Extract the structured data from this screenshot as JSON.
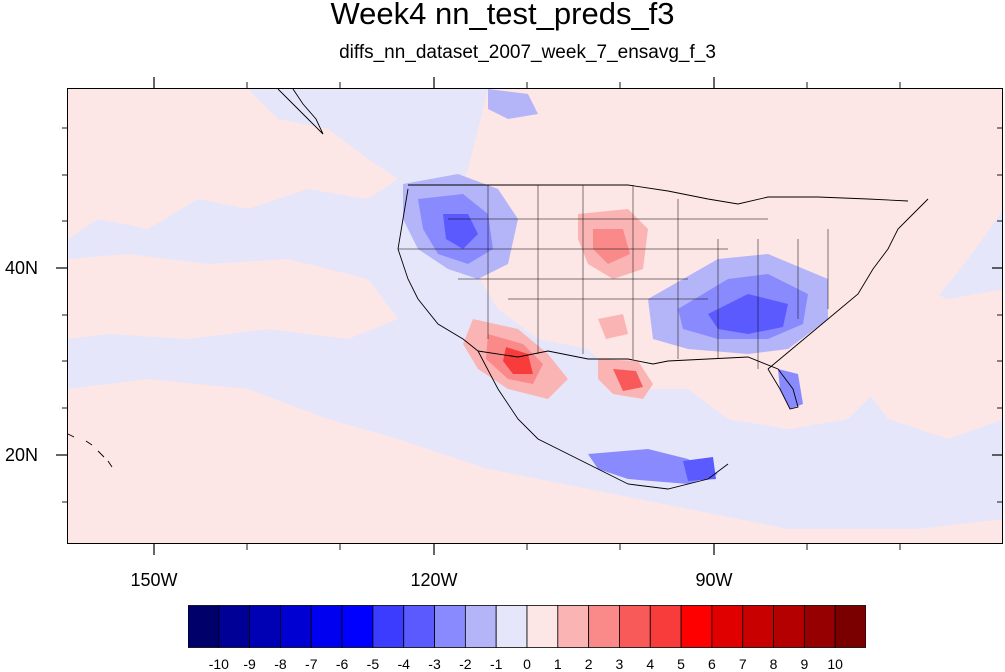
{
  "title": "Week4 nn_test_preds_f3",
  "subtitle": "diffs_nn_dataset_2007_week_7_ensavg_f_3",
  "lat_labels": [
    "40N",
    "20N"
  ],
  "lon_labels": [
    "150W",
    "120W",
    "90W"
  ],
  "colorbar": {
    "labels": [
      "-10",
      "-9",
      "-8",
      "-7",
      "-6",
      "-5",
      "-4",
      "-3",
      "-2",
      "-1",
      "0",
      "1",
      "2",
      "3",
      "4",
      "5",
      "6",
      "7",
      "8",
      "9",
      "10"
    ],
    "colors": [
      "#00006b",
      "#000096",
      "#0000b4",
      "#0000d2",
      "#0000f0",
      "#0000ff",
      "#3c3cff",
      "#5a5aff",
      "#8a8aff",
      "#b4b4f8",
      "#e6e6fb",
      "#fde6e6",
      "#fbb4b4",
      "#fa8a8a",
      "#f85a5a",
      "#f83c3c",
      "#ff0000",
      "#e00000",
      "#c80000",
      "#b40000",
      "#960000",
      "#7a0000"
    ]
  }
}
